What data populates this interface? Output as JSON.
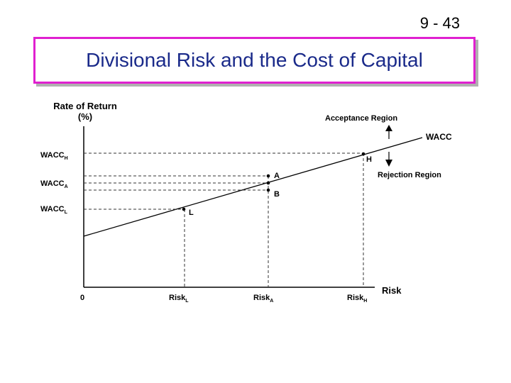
{
  "slide": {
    "number": "9 - 43",
    "title": "Divisional Risk and the Cost of Capital"
  },
  "diagram": {
    "y_axis_label_line1": "Rate of Return",
    "y_axis_label_line2": "(%)",
    "x_axis_label": "Risk",
    "origin_label": "0",
    "line_label": "WACC",
    "acceptance_region": "Acceptance Region",
    "rejection_region": "Rejection Region",
    "y_ticks": [
      {
        "base": "WACC",
        "sub": "H"
      },
      {
        "base": "WACC",
        "sub": "A"
      },
      {
        "base": "WACC",
        "sub": "L"
      }
    ],
    "x_ticks": [
      {
        "base": "Risk",
        "sub": "L"
      },
      {
        "base": "Risk",
        "sub": "A"
      },
      {
        "base": "Risk",
        "sub": "H"
      }
    ],
    "points": [
      {
        "label": "H"
      },
      {
        "label": "A"
      },
      {
        "label": "B"
      },
      {
        "label": "L"
      }
    ]
  }
}
